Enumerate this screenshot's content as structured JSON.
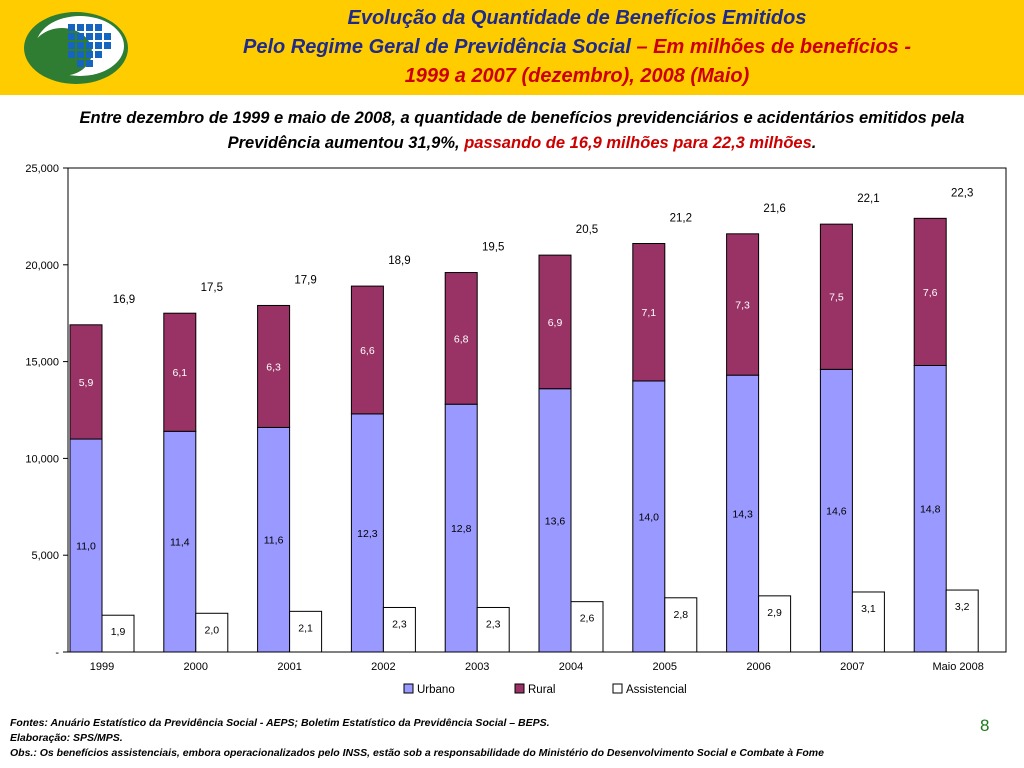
{
  "header": {
    "title_line1": "Evolução da Quantidade de Benefícios Emitidos",
    "title_line2_blue": "Pelo Regime Geral de Previdência Social",
    "title_line2_red": " – Em milhões de benefícios -",
    "title_line3": "1999 a 2007 (dezembro), 2008 (Maio)"
  },
  "intro": {
    "text_black": "Entre dezembro de 1999 e maio de 2008, a quantidade de benefícios previdenciários e acidentários emitidos pela Previdência aumentou 31,9%, ",
    "text_red": "passando de 16,9 milhões para 22,3 milhões",
    "text_end": "."
  },
  "chart_data": {
    "type": "bar",
    "stacked_series": [
      "Urbano",
      "Rural"
    ],
    "separate_series": "Assistencial",
    "categories": [
      "1999",
      "2000",
      "2001",
      "2002",
      "2003",
      "2004",
      "2005",
      "2006",
      "2007",
      "Maio  2008"
    ],
    "series": [
      {
        "name": "Urbano",
        "color": "#9999ff",
        "values": [
          11.0,
          11.4,
          11.6,
          12.3,
          12.8,
          13.6,
          14.0,
          14.3,
          14.6,
          14.8
        ],
        "labels": [
          "11,0",
          "11,4",
          "11,6",
          "12,3",
          "12,8",
          "13,6",
          "14,0",
          "14,3",
          "14,6",
          "14,8"
        ]
      },
      {
        "name": "Rural",
        "color": "#993366",
        "values": [
          5.9,
          6.1,
          6.3,
          6.6,
          6.8,
          6.9,
          7.1,
          7.3,
          7.5,
          7.6
        ],
        "labels": [
          "5,9",
          "6,1",
          "6,3",
          "6,6",
          "6,8",
          "6,9",
          "7,1",
          "7,3",
          "7,5",
          "7,6"
        ]
      },
      {
        "name": "Assistencial",
        "color": "#ffffff",
        "values": [
          1.9,
          2.0,
          2.1,
          2.3,
          2.3,
          2.6,
          2.8,
          2.9,
          3.1,
          3.2
        ],
        "labels": [
          "1,9",
          "2,0",
          "2,1",
          "2,3",
          "2,3",
          "2,6",
          "2,8",
          "2,9",
          "3,1",
          "3,2"
        ]
      }
    ],
    "totals": [
      "16,9",
      "17,5",
      "17,9",
      "18,9",
      "19,5",
      "20,5",
      "21,2",
      "21,6",
      "22,1",
      "22,3"
    ],
    "totals_values": [
      16.9,
      17.5,
      17.9,
      18.9,
      19.5,
      20.5,
      21.2,
      21.6,
      22.1,
      22.3
    ],
    "yticks": [
      "-",
      "5,000",
      "10,000",
      "15,000",
      "20,000",
      "25,000"
    ],
    "ylim": [
      0,
      25000
    ],
    "value_scale": 1000,
    "legend": "bottom",
    "grid": false
  },
  "footer": {
    "fontes": "Fontes: Anuário Estatístico da Previdência Social - AEPS; Boletim Estatístico da Previdência Social – BEPS.",
    "elaboracao": "Elaboração: SPS/MPS.",
    "obs": "Obs.: Os benefícios assistenciais, embora operacionalizados pelo INSS, estão sob a responsabilidade do Ministério do Desenvolvimento Social e Combate à Fome"
  },
  "page_number": "8",
  "colors": {
    "header_bg": "#ffcc00",
    "title_blue": "#1f2a8a",
    "title_red": "#cc0000",
    "page_number": "#1a7a1a"
  }
}
